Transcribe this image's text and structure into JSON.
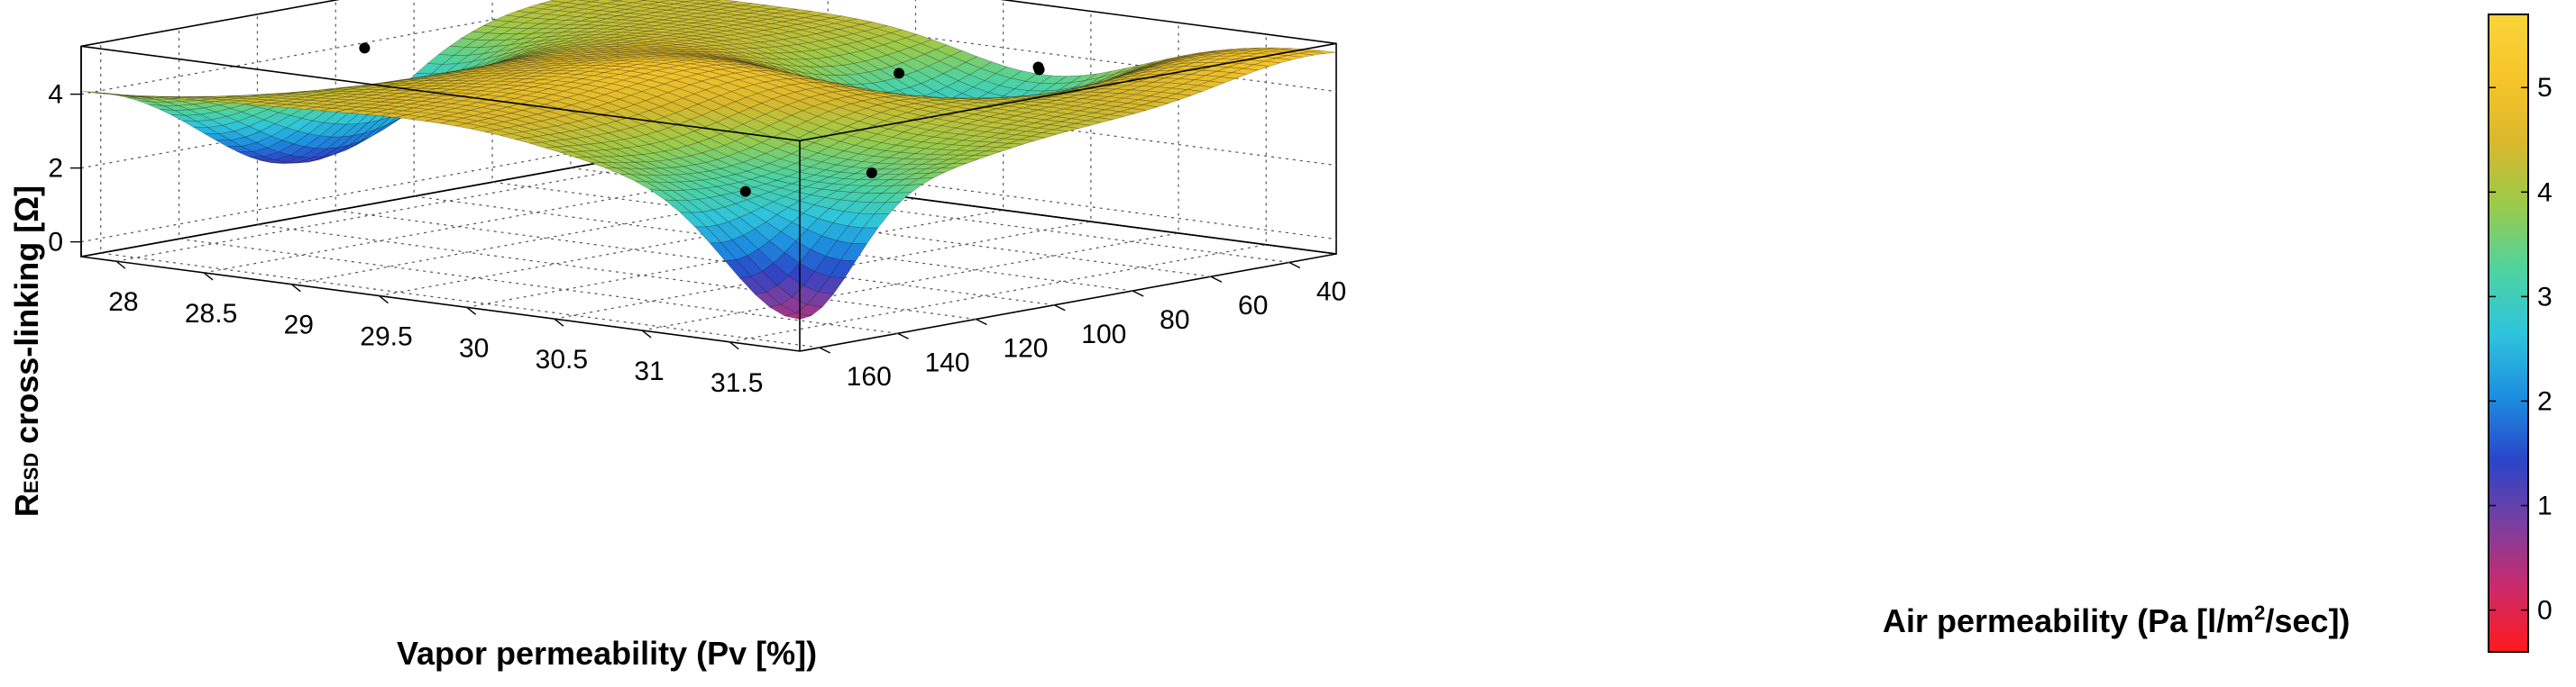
{
  "chart_data": {
    "type": "surface3d",
    "title": "",
    "zlabel_main": "R",
    "zlabel_sub": "ESD",
    "zlabel_rest": " cross-linking [Ω]",
    "xlabel": "Vapor permeability (Pv [%])",
    "ylabel_pre": "Air permeability (Pa [l/m",
    "ylabel_sup": "2",
    "ylabel_post": "/sec])",
    "xlim": [
      27.8,
      31.9
    ],
    "ylim": [
      28,
      165
    ],
    "zlim": [
      -0.4,
      5.7
    ],
    "x_ticks": [
      "28",
      "28.5",
      "29",
      "29.5",
      "30",
      "30.5",
      "31",
      "31.5"
    ],
    "x_tick_values": [
      28,
      28.5,
      29,
      29.5,
      30,
      30.5,
      31,
      31.5
    ],
    "y_ticks": [
      "40",
      "60",
      "80",
      "100",
      "120",
      "140",
      "160"
    ],
    "y_tick_values": [
      40,
      60,
      80,
      100,
      120,
      140,
      160
    ],
    "z_ticks": [
      "0",
      "2",
      "4"
    ],
    "z_tick_values": [
      0,
      2,
      4
    ],
    "colorbar": {
      "min": -0.4,
      "max": 5.7,
      "ticks": [
        "0",
        "1",
        "2",
        "3",
        "4",
        "5"
      ],
      "tick_values": [
        0,
        1,
        2,
        3,
        4,
        5
      ],
      "colors": [
        "#ff1a1a",
        "#cc2a6a",
        "#7a3fa0",
        "#2a44c8",
        "#1d8ee0",
        "#2ec4dc",
        "#4ed3a0",
        "#9acb4a",
        "#d9b82c",
        "#f6c52a",
        "#f9d43a"
      ]
    },
    "grid": true,
    "data_points": [
      {
        "x": 30.25,
        "y": 30,
        "z": 3.6
      },
      {
        "x": 29.45,
        "y": 30,
        "z": 3.0
      },
      {
        "x": 30.3,
        "y": 75,
        "z": 1.7
      },
      {
        "x": 28.3,
        "y": 115,
        "z": 4.6
      },
      {
        "x": 31.3,
        "y": 152,
        "z": 3.3
      },
      {
        "x": 30.2,
        "y": 28,
        "z": 3.6
      }
    ]
  }
}
